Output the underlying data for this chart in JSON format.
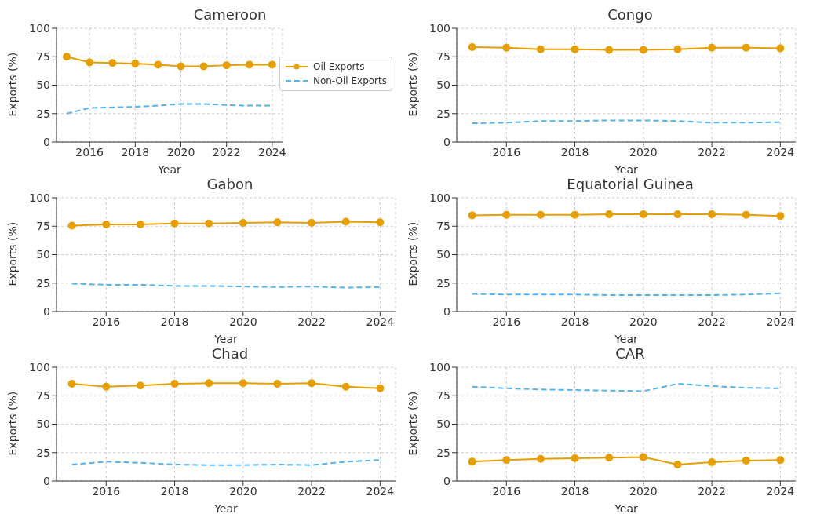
{
  "chart_data": [
    {
      "type": "line",
      "title": "Cameroon",
      "xlabel": "Year",
      "ylabel": "Exports (%)",
      "x": [
        2015,
        2016,
        2017,
        2018,
        2019,
        2020,
        2021,
        2022,
        2023,
        2024
      ],
      "xlim": [
        2014.55,
        2024.45
      ],
      "xticks": [
        2016,
        2018,
        2020,
        2022,
        2024
      ],
      "ylim": [
        0,
        100
      ],
      "yticks": [
        0,
        25,
        50,
        75,
        100
      ],
      "grid": true,
      "legend": "right",
      "series": [
        {
          "name": "Oil Exports",
          "color": "#e69f00",
          "marker": "circle",
          "line_style": "solid",
          "values": [
            75,
            70,
            69.5,
            69,
            68,
            66.5,
            66.5,
            67.5,
            68,
            68
          ]
        },
        {
          "name": "Non-Oil Exports",
          "color": "#56b4e9",
          "marker": "none",
          "line_style": "dashed",
          "values": [
            25,
            30,
            30.5,
            31,
            32,
            33.5,
            33.5,
            32.5,
            32,
            32
          ]
        }
      ]
    },
    {
      "type": "line",
      "title": "Congo",
      "xlabel": "Year",
      "ylabel": "Exports (%)",
      "x": [
        2015,
        2016,
        2017,
        2018,
        2019,
        2020,
        2021,
        2022,
        2023,
        2024
      ],
      "xlim": [
        2014.55,
        2024.45
      ],
      "xticks": [
        2016,
        2018,
        2020,
        2022,
        2024
      ],
      "ylim": [
        0,
        100
      ],
      "yticks": [
        0,
        25,
        50,
        75,
        100
      ],
      "grid": true,
      "series": [
        {
          "color": "#e69f00",
          "marker": "circle",
          "line_style": "solid",
          "values": [
            83.5,
            83,
            81.5,
            81.5,
            81,
            81,
            81.5,
            83,
            83,
            82.5
          ]
        },
        {
          "color": "#56b4e9",
          "marker": "none",
          "line_style": "dashed",
          "values": [
            16.5,
            17,
            18.5,
            18.5,
            19,
            19,
            18.5,
            17,
            17,
            17.5
          ]
        }
      ]
    },
    {
      "type": "line",
      "title": "Gabon",
      "xlabel": "Year",
      "ylabel": "Exports (%)",
      "x": [
        2015,
        2016,
        2017,
        2018,
        2019,
        2020,
        2021,
        2022,
        2023,
        2024
      ],
      "xlim": [
        2014.55,
        2024.45
      ],
      "xticks": [
        2016,
        2018,
        2020,
        2022,
        2024
      ],
      "ylim": [
        0,
        100
      ],
      "yticks": [
        0,
        25,
        50,
        75,
        100
      ],
      "grid": true,
      "series": [
        {
          "color": "#e69f00",
          "marker": "circle",
          "line_style": "solid",
          "values": [
            75.5,
            76.5,
            76.5,
            77.5,
            77.5,
            78,
            78.5,
            78,
            79,
            78.5
          ]
        },
        {
          "color": "#56b4e9",
          "marker": "none",
          "line_style": "dashed",
          "values": [
            24.5,
            23.5,
            23.5,
            22.5,
            22.5,
            22,
            21.5,
            22,
            21,
            21.5
          ]
        }
      ]
    },
    {
      "type": "line",
      "title": "Equatorial Guinea",
      "xlabel": "Year",
      "ylabel": "Exports (%)",
      "x": [
        2015,
        2016,
        2017,
        2018,
        2019,
        2020,
        2021,
        2022,
        2023,
        2024
      ],
      "xlim": [
        2014.55,
        2024.45
      ],
      "xticks": [
        2016,
        2018,
        2020,
        2022,
        2024
      ],
      "ylim": [
        0,
        100
      ],
      "yticks": [
        0,
        25,
        50,
        75,
        100
      ],
      "grid": true,
      "series": [
        {
          "color": "#e69f00",
          "marker": "circle",
          "line_style": "solid",
          "values": [
            84.5,
            85,
            85,
            85,
            85.5,
            85.5,
            85.5,
            85.5,
            85,
            84
          ]
        },
        {
          "color": "#56b4e9",
          "marker": "none",
          "line_style": "dashed",
          "values": [
            15.5,
            15,
            15,
            15,
            14.5,
            14.5,
            14.5,
            14.5,
            15,
            16
          ]
        }
      ]
    },
    {
      "type": "line",
      "title": "Chad",
      "xlabel": "Year",
      "ylabel": "Exports (%)",
      "x": [
        2015,
        2016,
        2017,
        2018,
        2019,
        2020,
        2021,
        2022,
        2023,
        2024
      ],
      "xlim": [
        2014.55,
        2024.45
      ],
      "xticks": [
        2016,
        2018,
        2020,
        2022,
        2024
      ],
      "ylim": [
        0,
        100
      ],
      "yticks": [
        0,
        25,
        50,
        75,
        100
      ],
      "grid": true,
      "series": [
        {
          "color": "#e69f00",
          "marker": "circle",
          "line_style": "solid",
          "values": [
            85.5,
            83,
            84,
            85.5,
            86,
            86,
            85.5,
            86,
            83,
            81.5
          ]
        },
        {
          "color": "#56b4e9",
          "marker": "none",
          "line_style": "dashed",
          "values": [
            14.5,
            17,
            16,
            14.5,
            14,
            14,
            14.5,
            14,
            17,
            18.5
          ]
        }
      ]
    },
    {
      "type": "line",
      "title": "CAR",
      "xlabel": "Year",
      "ylabel": "Exports (%)",
      "x": [
        2015,
        2016,
        2017,
        2018,
        2019,
        2020,
        2021,
        2022,
        2023,
        2024
      ],
      "xlim": [
        2014.55,
        2024.45
      ],
      "xticks": [
        2016,
        2018,
        2020,
        2022,
        2024
      ],
      "ylim": [
        0,
        100
      ],
      "yticks": [
        0,
        25,
        50,
        75,
        100
      ],
      "grid": true,
      "series": [
        {
          "color": "#e69f00",
          "marker": "circle",
          "line_style": "solid",
          "values": [
            17,
            18.5,
            19.5,
            20,
            20.5,
            21,
            14.5,
            16.5,
            18,
            18.5
          ]
        },
        {
          "color": "#56b4e9",
          "marker": "none",
          "line_style": "dashed",
          "values": [
            83,
            81.5,
            80.5,
            80,
            79.5,
            79,
            85.5,
            83.5,
            82,
            81.5
          ]
        }
      ]
    }
  ]
}
